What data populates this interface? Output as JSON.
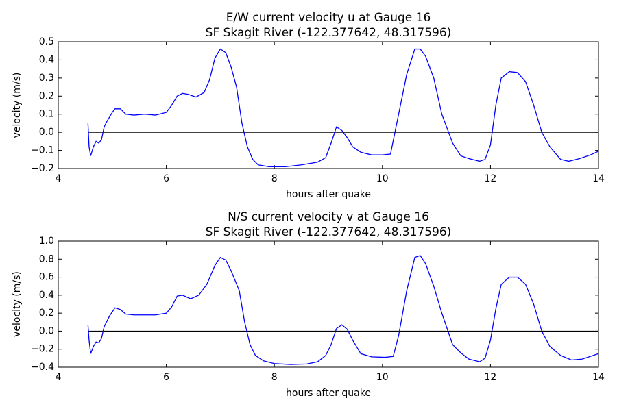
{
  "chart_data": [
    {
      "type": "line",
      "title": "E/W current velocity u at Gauge 16",
      "subtitle": "SF Skagit River  (-122.377642, 48.317596)",
      "xlabel": "hours after quake",
      "ylabel": "velocity (m/s)",
      "color": "#0000ff",
      "hline": 0,
      "x": [
        4.55,
        4.57,
        4.6,
        4.65,
        4.7,
        4.75,
        4.8,
        4.85,
        4.9,
        5.0,
        5.05,
        5.15,
        5.25,
        5.4,
        5.6,
        5.8,
        6.0,
        6.1,
        6.2,
        6.3,
        6.4,
        6.55,
        6.7,
        6.8,
        6.9,
        7.0,
        7.1,
        7.2,
        7.3,
        7.4,
        7.5,
        7.6,
        7.7,
        7.9,
        8.2,
        8.5,
        8.8,
        8.95,
        9.05,
        9.15,
        9.25,
        9.35,
        9.45,
        9.6,
        9.8,
        10.0,
        10.15,
        10.3,
        10.45,
        10.6,
        10.7,
        10.8,
        10.95,
        11.1,
        11.3,
        11.45,
        11.6,
        11.8,
        11.9,
        12.0,
        12.1,
        12.2,
        12.35,
        12.5,
        12.65,
        12.8,
        12.95,
        13.1,
        13.3,
        13.45,
        13.65,
        13.85,
        14.0
      ],
      "values": [
        0.05,
        -0.08,
        -0.13,
        -0.08,
        -0.05,
        -0.06,
        -0.04,
        0.03,
        0.06,
        0.11,
        0.13,
        0.13,
        0.1,
        0.095,
        0.1,
        0.095,
        0.11,
        0.15,
        0.2,
        0.215,
        0.21,
        0.195,
        0.22,
        0.29,
        0.41,
        0.46,
        0.44,
        0.36,
        0.25,
        0.05,
        -0.08,
        -0.15,
        -0.18,
        -0.19,
        -0.19,
        -0.18,
        -0.165,
        -0.14,
        -0.06,
        0.03,
        0.01,
        -0.03,
        -0.08,
        -0.11,
        -0.125,
        -0.125,
        -0.12,
        0.1,
        0.32,
        0.46,
        0.46,
        0.42,
        0.3,
        0.1,
        -0.06,
        -0.13,
        -0.145,
        -0.16,
        -0.15,
        -0.07,
        0.15,
        0.3,
        0.335,
        0.33,
        0.28,
        0.15,
        0.0,
        -0.08,
        -0.15,
        -0.16,
        -0.145,
        -0.125,
        -0.105
      ],
      "xlim": [
        4,
        14
      ],
      "xticks": [
        4,
        6,
        8,
        10,
        12,
        14
      ],
      "ylim": [
        -0.2,
        0.5
      ],
      "yticks": [
        {
          "value": -0.2,
          "label": "−0.2"
        },
        {
          "value": -0.1,
          "label": "−0.1"
        },
        {
          "value": 0,
          "label": "0.0"
        },
        0.1,
        0.2,
        0.3,
        0.4,
        0.5
      ]
    },
    {
      "type": "line",
      "title": "N/S current velocity v at Gauge 16",
      "subtitle": "SF Skagit River  (-122.377642, 48.317596)",
      "xlabel": "hours after quake",
      "ylabel": "velocity (m/s)",
      "color": "#0000ff",
      "hline": 0,
      "x": [
        4.55,
        4.57,
        4.6,
        4.65,
        4.7,
        4.75,
        4.8,
        4.85,
        4.95,
        5.05,
        5.15,
        5.25,
        5.4,
        5.6,
        5.8,
        6.0,
        6.1,
        6.2,
        6.3,
        6.45,
        6.6,
        6.75,
        6.9,
        7.0,
        7.1,
        7.2,
        7.35,
        7.45,
        7.55,
        7.65,
        7.8,
        8.0,
        8.3,
        8.6,
        8.8,
        8.95,
        9.05,
        9.15,
        9.25,
        9.35,
        9.45,
        9.6,
        9.8,
        10.05,
        10.2,
        10.3,
        10.45,
        10.6,
        10.7,
        10.8,
        10.95,
        11.1,
        11.3,
        11.45,
        11.6,
        11.8,
        11.9,
        12.0,
        12.1,
        12.2,
        12.35,
        12.5,
        12.65,
        12.8,
        12.95,
        13.1,
        13.3,
        13.5,
        13.7,
        13.9,
        14.0
      ],
      "values": [
        0.07,
        -0.1,
        -0.25,
        -0.17,
        -0.12,
        -0.13,
        -0.08,
        0.05,
        0.17,
        0.26,
        0.24,
        0.19,
        0.18,
        0.18,
        0.18,
        0.2,
        0.27,
        0.39,
        0.4,
        0.36,
        0.4,
        0.52,
        0.73,
        0.82,
        0.79,
        0.67,
        0.45,
        0.1,
        -0.15,
        -0.27,
        -0.33,
        -0.36,
        -0.37,
        -0.365,
        -0.34,
        -0.27,
        -0.15,
        0.03,
        0.07,
        0.02,
        -0.1,
        -0.25,
        -0.285,
        -0.29,
        -0.28,
        -0.05,
        0.45,
        0.82,
        0.84,
        0.75,
        0.5,
        0.2,
        -0.15,
        -0.24,
        -0.31,
        -0.34,
        -0.3,
        -0.1,
        0.25,
        0.52,
        0.6,
        0.6,
        0.52,
        0.3,
        0.0,
        -0.17,
        -0.27,
        -0.32,
        -0.31,
        -0.27,
        -0.25
      ],
      "xlim": [
        4,
        14
      ],
      "xticks": [
        4,
        6,
        8,
        10,
        12,
        14
      ],
      "ylim": [
        -0.4,
        1.0
      ],
      "yticks": [
        {
          "value": -0.4,
          "label": "−0.4"
        },
        {
          "value": -0.2,
          "label": "−0.2"
        },
        {
          "value": 0,
          "label": "0.0"
        },
        0.2,
        0.4,
        0.6,
        0.8,
        {
          "value": 1.0,
          "label": "1.0"
        }
      ]
    }
  ]
}
